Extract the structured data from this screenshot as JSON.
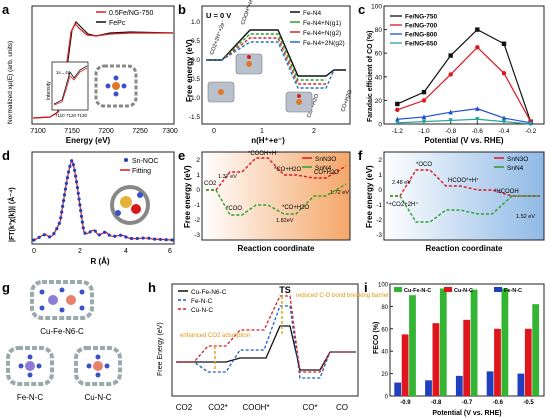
{
  "panels": {
    "a": {
      "letter": "a",
      "ylabel": "Normalized xμ(E) (arb. units)",
      "xlabel": "Energy (eV)",
      "xticks": [
        "7100",
        "7150",
        "7200",
        "7250",
        "7300"
      ],
      "legend": [
        "0.5Fe/NG-750",
        "FePc"
      ],
      "inset": {
        "ylabel": "Intensity",
        "xticks": [
          "7110",
          "7120",
          "7130"
        ],
        "annotation": "1s→4p"
      },
      "colors": {
        "sample": "#d81e1e",
        "reference": "#111111"
      }
    },
    "b": {
      "letter": "b",
      "condition": "U = 0 V",
      "ylabel": "Free energy (eV)",
      "xlabel": "n(H⁺+e⁻)",
      "xticks": [
        "0",
        "1",
        "2"
      ],
      "yticks": [
        "1.0",
        "0.5",
        "0.0",
        "-0.5",
        "-1.0",
        "-1.5"
      ],
      "legend": [
        "Fe-N4",
        "Fe-N4+N(g1)",
        "Fe-N4+N(g2)",
        "Fe-N4+2N(g2)"
      ],
      "annotations": [
        "CO2+2H⁺+2e⁻",
        "COOH*+H⁺+e⁻",
        "CO*+H2O",
        "CO+H2O"
      ],
      "colors": [
        "#111111",
        "#2ca02c",
        "#d62728",
        "#1f77b4"
      ]
    },
    "c": {
      "letter": "c",
      "ylabel": "Faradaic efficient of CO (%)",
      "xlabel": "Potential (V vs. RHE)",
      "chart_data": {
        "type": "line",
        "x": [
          -1.2,
          -1.0,
          -0.8,
          -0.6,
          -0.4,
          -0.2
        ],
        "xlim": [
          -1.3,
          -0.1
        ],
        "ylim": [
          0,
          100
        ],
        "xticks": [
          "-1.2",
          "-1.0",
          "-0.8",
          "-0.6",
          "-0.4",
          "-0.2"
        ],
        "yticks": [
          "0",
          "20",
          "40",
          "60",
          "80",
          "100"
        ],
        "series": [
          {
            "name": "Fe/NG-750",
            "color": "#111111",
            "marker": "square",
            "values": [
              17,
              27,
              58,
              80,
              68,
              2
            ]
          },
          {
            "name": "Fe/NG-700",
            "color": "#e0161e",
            "marker": "circle",
            "values": [
              12,
              20,
              42,
              65,
              43,
              2
            ]
          },
          {
            "name": "Fe/NG-800",
            "color": "#1f4fd1",
            "marker": "triangle",
            "values": [
              4,
              6,
              10,
              13,
              5,
              1
            ]
          },
          {
            "name": "Fe/NG-650",
            "color": "#2aa198",
            "marker": "down-triangle",
            "values": [
              1,
              2,
              3,
              4,
              2,
              0
            ]
          }
        ],
        "legend_position": "top-left"
      }
    },
    "d": {
      "letter": "d",
      "ylabel": "|FT(k³χ(k))| (Å⁻⁴)",
      "xlabel": "R (Å)",
      "xticks": [
        "0",
        "2",
        "4",
        "6"
      ],
      "legend": [
        "Sn-NOC",
        "Fitting"
      ],
      "colors": {
        "data": "#1f3fbf",
        "fit": "#e0161e"
      }
    },
    "e": {
      "letter": "e",
      "ylabel": "Free energy (eV)",
      "xlabel": "Reaction coordinate",
      "yticks": [
        "2",
        "1",
        "0",
        "-1",
        "-2",
        "-3"
      ],
      "legend": [
        "SnN3O",
        "SnN4"
      ],
      "labels": [
        "CO2",
        "*COO",
        "*COOH+H⁺",
        "*CO+H2O",
        "*CO+H2O",
        "CO+H2O"
      ],
      "barriers": [
        "1.37 eV",
        "1.82eV",
        "1.72 eV"
      ],
      "colors": [
        "#e0161e",
        "#2aa02a"
      ]
    },
    "f": {
      "letter": "f",
      "ylabel": "Free energy (eV)",
      "xlabel": "Reaction coordinate",
      "yticks": [
        "2",
        "1",
        "0",
        "-1",
        "-2",
        "-3"
      ],
      "legend": [
        "SnN3O",
        "SnN4"
      ],
      "labels": [
        "*OCO",
        "HCOO*+H⁺",
        "*HCOOH",
        "*+CO2+2H⁺"
      ],
      "barriers": [
        "2.48 eV",
        "1.52 eV"
      ],
      "colors": [
        "#e0161e",
        "#2aa02a"
      ]
    },
    "g": {
      "letter": "g",
      "labels": [
        "Cu-Fe-N6-C",
        "Fe-N-C",
        "Cu-N-C"
      ]
    },
    "h": {
      "letter": "h",
      "ylabel": "Free Energy (eV)",
      "xticks": [
        "CO2",
        "CO2*",
        "COOH*",
        "CO*",
        "CO"
      ],
      "legend": [
        "Cu-Fe-N6-C",
        "Fe-N-C",
        "Cu-N-C"
      ],
      "ts_label": "TS",
      "notes": [
        "enhanced CO2 adsorption",
        "reduced C-O bond breaking barrier"
      ],
      "colors": [
        "#111111",
        "#1f5fc4",
        "#d62020"
      ]
    },
    "i": {
      "letter": "i",
      "ylabel": "FECO (%)",
      "xlabel": "Potential (V vs. RHE)",
      "chart_data": {
        "type": "bar",
        "categories": [
          "-0.9",
          "-0.8",
          "-0.7",
          "-0.6",
          "-0.5"
        ],
        "ylim": [
          0,
          100
        ],
        "yticks": [
          "0",
          "20",
          "40",
          "60",
          "80",
          "100"
        ],
        "series": [
          {
            "name": "Fe-N-C",
            "color": "#1f3fbf",
            "values": [
              12,
              14,
              18,
              22,
              20
            ]
          },
          {
            "name": "Cu-N-C",
            "color": "#e0161e",
            "values": [
              55,
              65,
              68,
              60,
              60
            ]
          },
          {
            "name": "Cu-Fe-N-C",
            "color": "#33b533",
            "values": [
              90,
              96,
              95,
              96,
              82
            ]
          }
        ],
        "legend_position": "top"
      }
    }
  }
}
